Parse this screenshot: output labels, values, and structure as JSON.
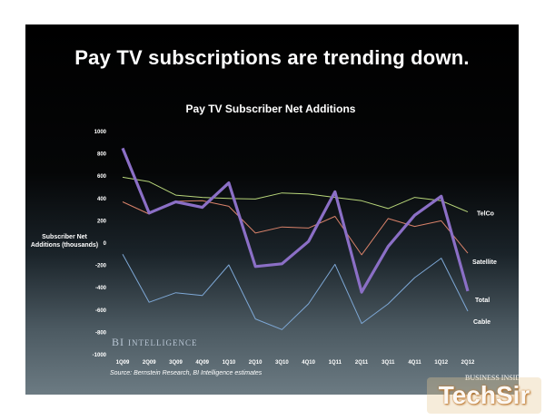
{
  "slide": {
    "headline": "Pay TV subscriptions are trending down.",
    "source": "Source: Bernstein Research, BI Intelligence estimates",
    "brand_main": "BI",
    "brand_word": "Intelligence"
  },
  "logos": {
    "business_insider": "BUSINESS INSIDER",
    "watermark": "TechSir"
  },
  "chart_data": {
    "type": "line",
    "title": "Pay TV Subscriber Net Additions",
    "ylabel": "Subscriber Net Additions (thousands)",
    "xlabel": "",
    "ylim": [
      -1000,
      1000
    ],
    "yticks": [
      1000,
      800,
      600,
      400,
      200,
      0,
      -200,
      -400,
      -600,
      -800,
      -1000
    ],
    "categories": [
      "1Q09",
      "2Q09",
      "3Q09",
      "4Q09",
      "1Q10",
      "2Q10",
      "3Q10",
      "4Q10",
      "1Q11",
      "2Q11",
      "3Q11",
      "4Q11",
      "1Q12",
      "2Q12"
    ],
    "grid": false,
    "legend": "inline labels at right end of each line",
    "series": [
      {
        "name": "TelCo",
        "color": "#b8d67a",
        "values": [
          590,
          550,
          430,
          410,
          400,
          395,
          450,
          440,
          410,
          380,
          310,
          410,
          380,
          280
        ]
      },
      {
        "name": "Satellite",
        "color": "#d9826a",
        "values": [
          370,
          260,
          375,
          380,
          330,
          90,
          145,
          135,
          240,
          -105,
          220,
          150,
          200,
          -90
        ]
      },
      {
        "name": "Cable",
        "color": "#7ea8d6",
        "values": [
          -100,
          -530,
          -445,
          -470,
          -195,
          -680,
          -775,
          -545,
          -190,
          -720,
          -545,
          -310,
          -135,
          -610
        ]
      },
      {
        "name": "Total",
        "color": "#8b6fc6",
        "values": [
          850,
          270,
          370,
          320,
          540,
          -210,
          -185,
          15,
          460,
          -440,
          -30,
          250,
          420,
          -430
        ]
      }
    ]
  }
}
